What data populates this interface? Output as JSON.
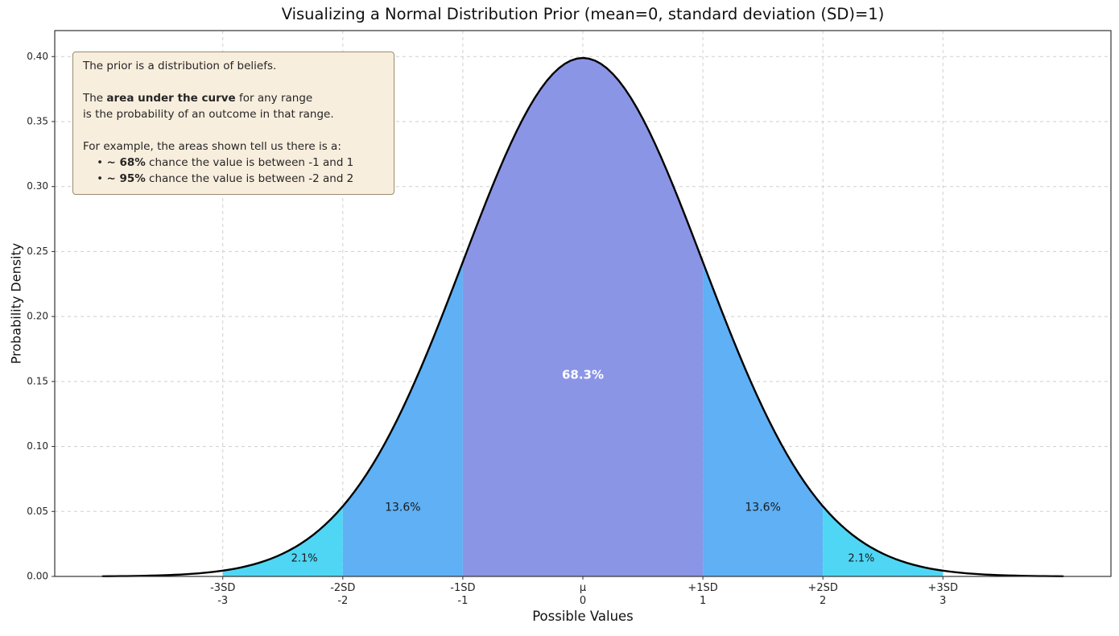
{
  "chart_data": {
    "type": "area",
    "title": "Visualizing a Normal Distribution Prior (mean=0, standard deviation (SD)=1)",
    "xlabel": "Possible Values",
    "ylabel": "Probability Density",
    "xlim": [
      -4.4,
      4.4
    ],
    "ylim": [
      0,
      0.42
    ],
    "grid": true,
    "curve": {
      "distribution": "normal",
      "mean": 0,
      "sd": 1,
      "x_range": [
        -4,
        4
      ],
      "peak_density": 0.399,
      "stroke_color": "#000000"
    },
    "y_ticks": [
      "0.00",
      "0.05",
      "0.10",
      "0.15",
      "0.20",
      "0.25",
      "0.30",
      "0.35",
      "0.40"
    ],
    "x_ticks": [
      {
        "sd": "-3SD",
        "val": "-3",
        "x": -3
      },
      {
        "sd": "-2SD",
        "val": "-2",
        "x": -2
      },
      {
        "sd": "-1SD",
        "val": "-1",
        "x": -1
      },
      {
        "sd": "μ",
        "val": "0",
        "x": 0
      },
      {
        "sd": "+1SD",
        "val": "1",
        "x": 1
      },
      {
        "sd": "+2SD",
        "val": "2",
        "x": 2
      },
      {
        "sd": "+3SD",
        "val": "3",
        "x": 3
      }
    ],
    "regions": [
      {
        "from": -1,
        "to": 1,
        "color": "#8b95e6",
        "probability": "68.3%",
        "label": {
          "text": "68.3%",
          "x": 0,
          "y": 0.155,
          "color": "#ffffff",
          "size": 15,
          "bold": true
        }
      },
      {
        "from": -2,
        "to": -1,
        "color": "#5fb0f5",
        "probability": "13.6%",
        "label": {
          "text": "13.6%",
          "x": -1.5,
          "y": 0.053,
          "color": "#1a1a1a",
          "size": 14,
          "bold": false
        }
      },
      {
        "from": 1,
        "to": 2,
        "color": "#5fb0f5",
        "probability": "13.6%",
        "label": {
          "text": "13.6%",
          "x": 1.5,
          "y": 0.053,
          "color": "#1a1a1a",
          "size": 14,
          "bold": false
        }
      },
      {
        "from": -3,
        "to": -2,
        "color": "#4fd6f4",
        "probability": "2.1%",
        "label": {
          "text": "2.1%",
          "x": -2.32,
          "y": 0.0135,
          "color": "#1a1a1a",
          "size": 13,
          "bold": false
        }
      },
      {
        "from": 2,
        "to": 3,
        "color": "#4fd6f4",
        "probability": "2.1%",
        "label": {
          "text": "2.1%",
          "x": 2.32,
          "y": 0.0135,
          "color": "#1a1a1a",
          "size": 13,
          "bold": false
        }
      }
    ],
    "annotation": {
      "bg_color": "#f8eedd",
      "border_color": "#9a8c6d",
      "lines": [
        [
          {
            "t": "The prior is a distribution of beliefs."
          }
        ],
        [],
        [
          {
            "t": "The "
          },
          {
            "t": "area under the curve",
            "b": true
          },
          {
            "t": " for any range"
          }
        ],
        [
          {
            "t": "is the probability of an outcome in that range."
          }
        ],
        [],
        [
          {
            "t": "For example, the areas shown tell us there is a:"
          }
        ],
        [
          {
            "t": "    • "
          },
          {
            "t": "~ 68%",
            "b": true
          },
          {
            "t": " chance the value is between -1 and 1"
          }
        ],
        [
          {
            "t": "    • "
          },
          {
            "t": "~ 95%",
            "b": true
          },
          {
            "t": " chance the value is between -2 and 2"
          }
        ]
      ]
    },
    "style": {
      "grid_color": "#cfcfcf",
      "spine_color": "#333333",
      "tick_label_color": "#262626"
    }
  }
}
